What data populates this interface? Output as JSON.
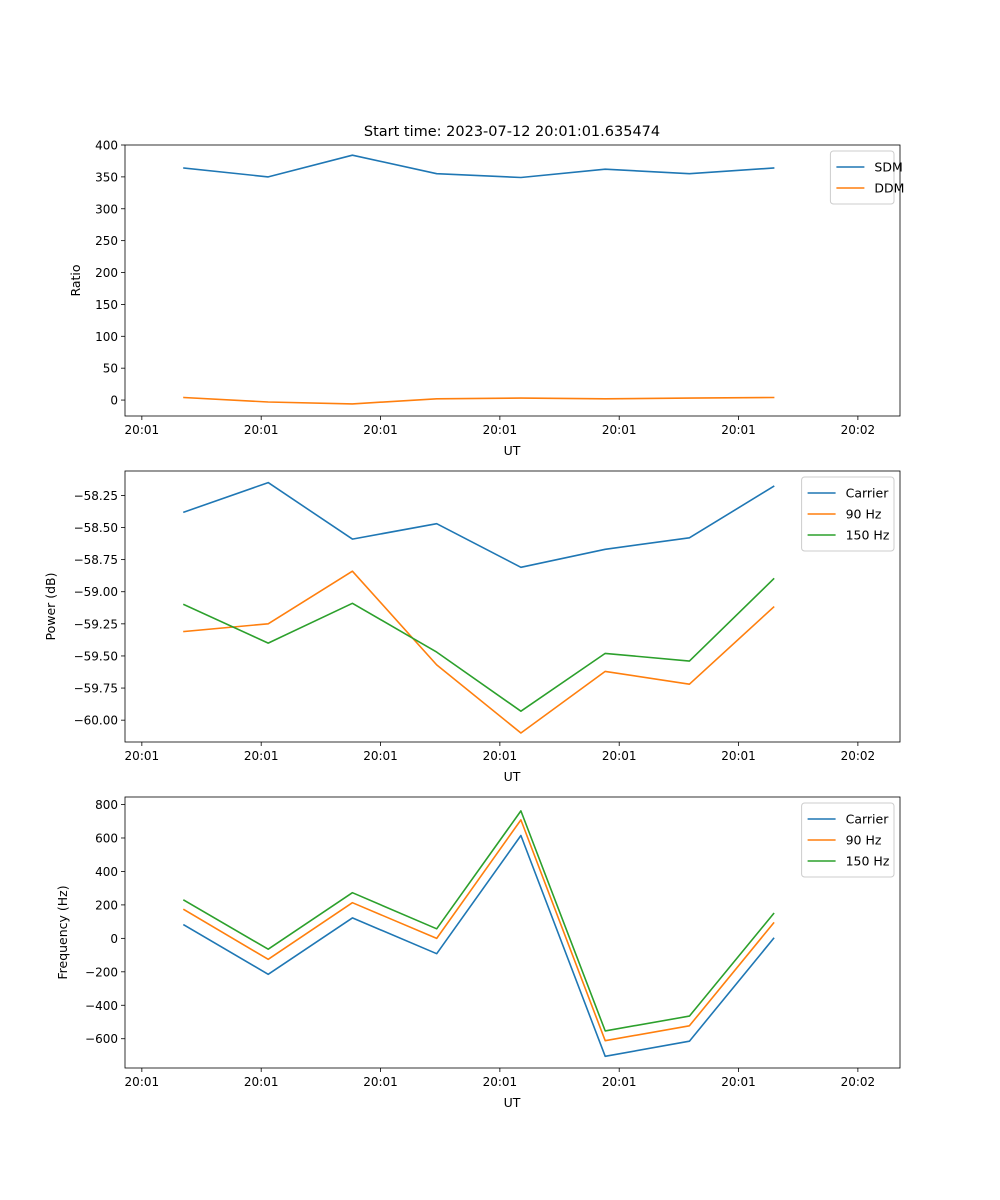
{
  "figure": {
    "title": "Start time: 2023-07-12 20:01:01.635474"
  },
  "chart_data": [
    {
      "type": "line",
      "xlabel": "UT",
      "ylabel": "Ratio",
      "x_tick_labels": [
        "20:01",
        "20:01",
        "20:01",
        "20:01",
        "20:01",
        "20:01",
        "20:02"
      ],
      "xlim": [
        -0.2,
        9.0
      ],
      "ylim": [
        -25,
        400
      ],
      "y_ticks": [
        0,
        50,
        100,
        150,
        200,
        250,
        300,
        350,
        400
      ],
      "y_tick_labels": [
        "0",
        "50",
        "100",
        "150",
        "200",
        "250",
        "300",
        "350",
        "400"
      ],
      "legend": "top-right",
      "x": [
        0.5,
        1.5,
        2.5,
        3.5,
        4.5,
        5.5,
        6.5,
        7.5
      ],
      "series": [
        {
          "name": "SDM",
          "color": "#1f77b4",
          "values": [
            364,
            350,
            384,
            355,
            349,
            362,
            355,
            364
          ]
        },
        {
          "name": "DDM",
          "color": "#ff7f0e",
          "values": [
            4,
            -3,
            -6,
            2,
            3,
            2,
            3,
            4
          ]
        }
      ]
    },
    {
      "type": "line",
      "xlabel": "UT",
      "ylabel": "Power (dB)",
      "x_tick_labels": [
        "20:01",
        "20:01",
        "20:01",
        "20:01",
        "20:01",
        "20:01",
        "20:02"
      ],
      "xlim": [
        -0.2,
        9.0
      ],
      "ylim": [
        -60.17,
        -58.06
      ],
      "y_ticks": [
        -60.0,
        -59.75,
        -59.5,
        -59.25,
        -59.0,
        -58.75,
        -58.5,
        -58.25
      ],
      "y_tick_labels": [
        "−60.00",
        "−59.75",
        "−59.50",
        "−59.25",
        "−59.00",
        "−58.75",
        "−58.50",
        "−58.25"
      ],
      "legend": "top-right",
      "x": [
        0.5,
        1.5,
        2.5,
        3.5,
        4.5,
        5.5,
        6.5,
        7.5
      ],
      "series": [
        {
          "name": "Carrier",
          "color": "#1f77b4",
          "values": [
            -58.38,
            -58.15,
            -58.59,
            -58.47,
            -58.81,
            -58.67,
            -58.58,
            -58.18
          ]
        },
        {
          "name": "90 Hz",
          "color": "#ff7f0e",
          "values": [
            -59.31,
            -59.25,
            -58.84,
            -59.57,
            -60.1,
            -59.62,
            -59.72,
            -59.12
          ]
        },
        {
          "name": "150 Hz",
          "color": "#2ca02c",
          "values": [
            -59.1,
            -59.4,
            -59.09,
            -59.47,
            -59.93,
            -59.48,
            -59.54,
            -58.9
          ]
        }
      ]
    },
    {
      "type": "line",
      "xlabel": "UT",
      "ylabel": "Frequency (Hz)",
      "x_tick_labels": [
        "20:01",
        "20:01",
        "20:01",
        "20:01",
        "20:01",
        "20:01",
        "20:02"
      ],
      "xlim": [
        -0.2,
        9.0
      ],
      "ylim": [
        -775,
        845
      ],
      "y_ticks": [
        -600,
        -400,
        -200,
        0,
        200,
        400,
        600,
        800
      ],
      "y_tick_labels": [
        "−600",
        "−400",
        "−200",
        "0",
        "200",
        "400",
        "600",
        "800"
      ],
      "legend": "top-right",
      "x": [
        0.5,
        1.5,
        2.5,
        3.5,
        4.5,
        5.5,
        6.5,
        7.5
      ],
      "series": [
        {
          "name": "Carrier",
          "color": "#1f77b4",
          "values": [
            80,
            -215,
            122,
            -92,
            615,
            -705,
            -615,
            0
          ]
        },
        {
          "name": "90 Hz",
          "color": "#ff7f0e",
          "values": [
            172,
            -125,
            213,
            0,
            708,
            -612,
            -523,
            92
          ]
        },
        {
          "name": "150 Hz",
          "color": "#2ca02c",
          "values": [
            228,
            -65,
            273,
            57,
            762,
            -553,
            -465,
            148
          ]
        }
      ]
    }
  ]
}
